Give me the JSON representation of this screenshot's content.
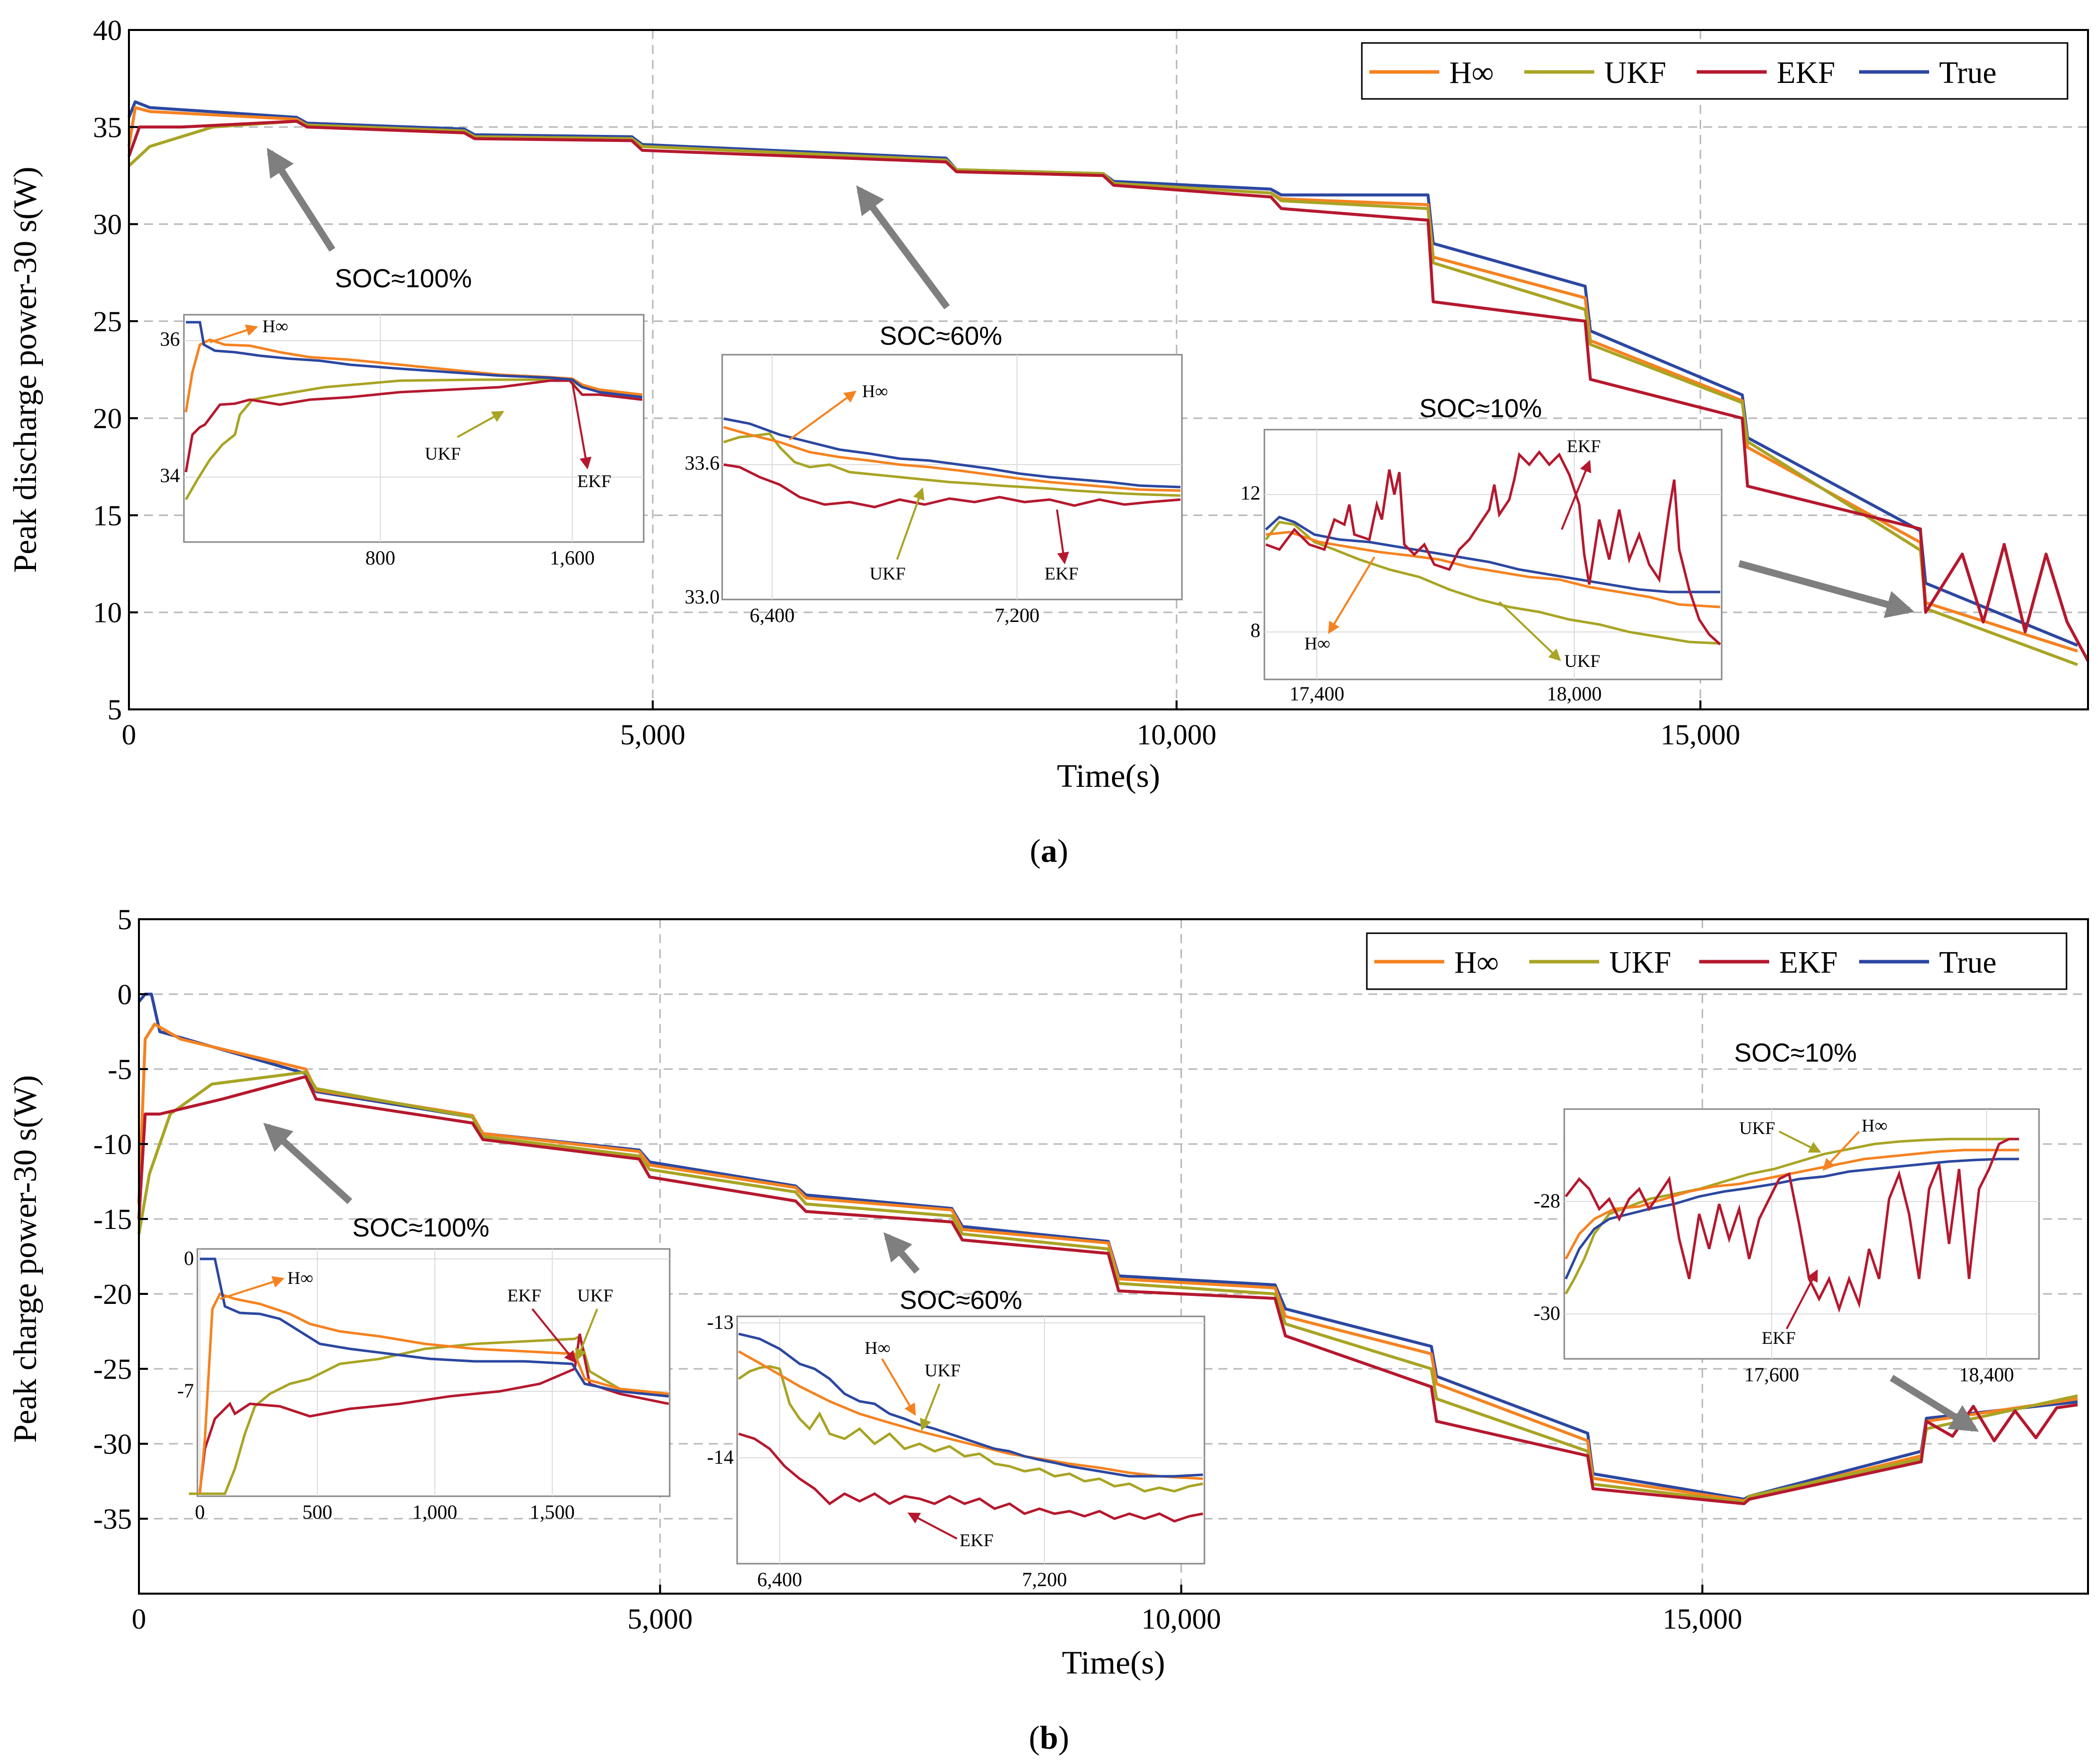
{
  "colors": {
    "Hinf": "#F58220",
    "UKF": "#A8A424",
    "EKF": "#B5182E",
    "True": "#2B47A0",
    "arrow": "#7f7f7f"
  },
  "chart_data": [
    {
      "id": "a",
      "type": "line",
      "caption_open": "(",
      "caption_letter": "a",
      "caption_close": ")",
      "xlabel": "Time(s)",
      "ylabel": "Peak discharge power-30 s(W)",
      "xlim": [
        0,
        18700
      ],
      "ylim": [
        5,
        40
      ],
      "xticks": [
        0,
        5000,
        10000,
        15000
      ],
      "xtick_labels": [
        "0",
        "5,000",
        "10,000",
        "15,000"
      ],
      "yticks": [
        5,
        10,
        15,
        20,
        25,
        30,
        35,
        40
      ],
      "ytick_labels": [
        "5",
        "10",
        "15",
        "20",
        "25",
        "30",
        "35",
        "40"
      ],
      "grid": true,
      "legend": [
        "H∞",
        "UKF",
        "EKF",
        "True"
      ],
      "legend_position": "top-right",
      "series": [
        {
          "name": "True",
          "color_key": "True",
          "x": [
            0,
            60,
            200,
            1600,
            1700,
            3200,
            3300,
            4800,
            4900,
            7800,
            7900,
            9300,
            9400,
            10900,
            11000,
            12400,
            12450,
            13900,
            13950,
            15400,
            15450,
            17100,
            17150,
            18600
          ],
          "y": [
            35.5,
            36.3,
            36.0,
            35.5,
            35.2,
            34.9,
            34.6,
            34.5,
            34.1,
            33.4,
            32.8,
            32.6,
            32.2,
            31.8,
            31.5,
            31.5,
            29.0,
            26.8,
            24.5,
            21.2,
            19.0,
            14.2,
            11.5,
            8.3
          ]
        },
        {
          "name": "H∞",
          "color_key": "Hinf",
          "x": [
            0,
            60,
            200,
            1600,
            1700,
            3200,
            3300,
            4800,
            4900,
            7800,
            7900,
            9300,
            9400,
            10900,
            11000,
            12400,
            12450,
            13900,
            13950,
            15400,
            15450,
            17100,
            17150,
            18600
          ],
          "y": [
            34.0,
            36.0,
            35.8,
            35.4,
            35.1,
            34.8,
            34.5,
            34.4,
            34.0,
            33.3,
            32.7,
            32.5,
            32.1,
            31.6,
            31.3,
            31.0,
            28.3,
            26.2,
            24.0,
            20.9,
            18.5,
            13.6,
            10.5,
            8.0
          ]
        },
        {
          "name": "UKF",
          "color_key": "UKF",
          "x": [
            0,
            200,
            800,
            1600,
            1700,
            3200,
            3300,
            4800,
            4900,
            7800,
            7900,
            9300,
            9400,
            10900,
            11000,
            12400,
            12450,
            13900,
            13950,
            15400,
            15450,
            17100,
            17150,
            18600
          ],
          "y": [
            33.0,
            34.0,
            35.0,
            35.3,
            35.1,
            34.8,
            34.5,
            34.4,
            34.0,
            33.3,
            32.8,
            32.6,
            32.1,
            31.6,
            31.2,
            30.8,
            28.0,
            25.6,
            23.8,
            20.8,
            18.8,
            13.2,
            10.2,
            7.3
          ]
        },
        {
          "name": "EKF",
          "color_key": "EKF",
          "x": [
            0,
            100,
            500,
            1600,
            1700,
            3200,
            3300,
            4800,
            4900,
            7800,
            7900,
            9300,
            9400,
            10900,
            11000,
            12400,
            12450,
            13900,
            13950,
            15400,
            15450,
            17100,
            17150,
            17500,
            17700,
            17900,
            18100,
            18300,
            18500,
            18700
          ],
          "y": [
            33.5,
            35.0,
            35.0,
            35.3,
            35.0,
            34.7,
            34.4,
            34.3,
            33.8,
            33.2,
            32.7,
            32.5,
            32.0,
            31.4,
            30.8,
            30.2,
            26.0,
            25.0,
            22.0,
            20.0,
            16.5,
            14.3,
            10.0,
            13.0,
            9.5,
            13.5,
            9.0,
            13.0,
            9.5,
            7.5
          ]
        }
      ],
      "annotations": [
        {
          "text": "SOC≈100%"
        },
        {
          "text": "SOC≈60%"
        },
        {
          "text": "SOC≈10%"
        }
      ],
      "insets": [
        {
          "id": "a1",
          "xticks": [
            800,
            1600
          ],
          "xtick_labels": [
            "800",
            "1,600"
          ],
          "yticks": [
            34,
            36
          ],
          "ytick_labels": [
            "34",
            "36"
          ],
          "labels": [
            "H∞",
            "UKF",
            "EKF"
          ]
        },
        {
          "id": "a2",
          "xticks": [
            6400,
            7200
          ],
          "xtick_labels": [
            "6,400",
            "7,200"
          ],
          "yticks": [
            33.0,
            33.6
          ],
          "ytick_labels": [
            "33.0",
            "33.6"
          ],
          "labels": [
            "H∞",
            "UKF",
            "EKF"
          ]
        },
        {
          "id": "a3",
          "xticks": [
            17400,
            18000
          ],
          "xtick_labels": [
            "17,400",
            "18,000"
          ],
          "yticks": [
            8,
            12
          ],
          "ytick_labels": [
            "8",
            "12"
          ],
          "labels": [
            "EKF",
            "H∞",
            "UKF"
          ]
        }
      ]
    },
    {
      "id": "b",
      "type": "line",
      "caption_open": "(",
      "caption_letter": "b",
      "caption_close": ")",
      "xlabel": "Time(s)",
      "ylabel": "Peak charge power-30 s(W)",
      "xlim": [
        0,
        18700
      ],
      "ylim": [
        -40,
        5
      ],
      "xticks": [
        0,
        5000,
        10000,
        15000
      ],
      "xtick_labels": [
        "0",
        "5,000",
        "10,000",
        "15,000"
      ],
      "yticks": [
        5,
        0,
        -5,
        -10,
        -15,
        -20,
        -25,
        -30,
        -35
      ],
      "ytick_labels": [
        "5",
        "0",
        "-5",
        "-10",
        "-15",
        "-20",
        "-25",
        "-30",
        "-35"
      ],
      "grid": true,
      "legend": [
        "H∞",
        "UKF",
        "EKF",
        "True"
      ],
      "legend_position": "top-right",
      "series": [
        {
          "name": "True",
          "color_key": "True",
          "x": [
            0,
            60,
            120,
            200,
            1600,
            1700,
            3200,
            3300,
            4800,
            4900,
            6300,
            6400,
            7800,
            7900,
            9300,
            9400,
            10900,
            11000,
            12400,
            12450,
            13900,
            13950,
            15400,
            15450,
            17100,
            17150,
            18600
          ],
          "y": [
            -0.5,
            0,
            0,
            -2.5,
            -5.3,
            -6.5,
            -8.2,
            -9.3,
            -10.4,
            -11.2,
            -12.8,
            -13.4,
            -14.3,
            -15.5,
            -16.5,
            -18.8,
            -19.4,
            -21.0,
            -23.5,
            -25.5,
            -29.3,
            -32.0,
            -33.7,
            -33.5,
            -30.5,
            -28.3,
            -27.2
          ]
        },
        {
          "name": "H∞",
          "color_key": "Hinf",
          "x": [
            0,
            60,
            150,
            400,
            1600,
            1700,
            3200,
            3300,
            4800,
            4900,
            6300,
            6400,
            7800,
            7900,
            9300,
            9400,
            10900,
            11000,
            12400,
            12450,
            13900,
            13950,
            15400,
            15450,
            17100,
            17150,
            18600
          ],
          "y": [
            -14,
            -3,
            -2,
            -3.0,
            -5.0,
            -6.4,
            -8.1,
            -9.3,
            -10.5,
            -11.4,
            -12.9,
            -13.6,
            -14.4,
            -15.7,
            -16.6,
            -19.0,
            -19.6,
            -21.5,
            -24.0,
            -26.0,
            -29.8,
            -32.3,
            -33.8,
            -33.6,
            -30.8,
            -28.5,
            -27.0
          ]
        },
        {
          "name": "UKF",
          "color_key": "UKF",
          "x": [
            0,
            100,
            300,
            700,
            1600,
            1700,
            3200,
            3300,
            4800,
            4900,
            6300,
            6400,
            7800,
            7900,
            9300,
            9400,
            10900,
            11000,
            12400,
            12450,
            13900,
            13950,
            15400,
            15450,
            17100,
            17150,
            18600
          ],
          "y": [
            -16,
            -12,
            -8,
            -6,
            -5.2,
            -6.3,
            -8.2,
            -9.5,
            -10.8,
            -11.7,
            -13.2,
            -14.0,
            -14.8,
            -16.0,
            -17.0,
            -19.3,
            -20.0,
            -22.0,
            -25.0,
            -27.0,
            -30.5,
            -32.7,
            -33.9,
            -33.5,
            -31.0,
            -29.0,
            -26.8
          ]
        },
        {
          "name": "EKF",
          "color_key": "EKF",
          "x": [
            0,
            60,
            200,
            800,
            1600,
            1700,
            3200,
            3300,
            4800,
            4900,
            6300,
            6400,
            7800,
            7900,
            9300,
            9400,
            10900,
            11000,
            12400,
            12450,
            13900,
            13950,
            15400,
            15450,
            17100,
            17150,
            17400,
            17600,
            17800,
            18000,
            18200,
            18400,
            18600
          ],
          "y": [
            -15,
            -8,
            -8,
            -7,
            -5.5,
            -7.0,
            -8.6,
            -9.7,
            -11.0,
            -12.2,
            -13.8,
            -14.5,
            -15.2,
            -16.4,
            -17.3,
            -19.8,
            -20.3,
            -22.8,
            -26.2,
            -28.5,
            -30.8,
            -33.0,
            -34.0,
            -33.7,
            -31.2,
            -28.5,
            -29.5,
            -27.5,
            -29.8,
            -27.8,
            -29.6,
            -27.6,
            -27.4
          ]
        }
      ],
      "annotations": [
        {
          "text": "SOC≈100%"
        },
        {
          "text": "SOC≈60%"
        },
        {
          "text": "SOC≈10%"
        }
      ],
      "insets": [
        {
          "id": "b1",
          "xticks": [
            0,
            500,
            1000,
            1500
          ],
          "xtick_labels": [
            "0",
            "500",
            "1,000",
            "1,500"
          ],
          "yticks": [
            0,
            -7
          ],
          "ytick_labels": [
            "0",
            "-7"
          ],
          "labels": [
            "H∞",
            "EKF",
            "UKF"
          ]
        },
        {
          "id": "b2",
          "xticks": [
            6400,
            7200
          ],
          "xtick_labels": [
            "6,400",
            "7,200"
          ],
          "yticks": [
            -13,
            -14
          ],
          "ytick_labels": [
            "-13",
            "-14"
          ],
          "labels": [
            "H∞",
            "UKF",
            "EKF"
          ]
        },
        {
          "id": "b3",
          "xticks": [
            17600,
            18400
          ],
          "xtick_labels": [
            "17,600",
            "18,400"
          ],
          "yticks": [
            -28,
            -30
          ],
          "ytick_labels": [
            "-28",
            "-30"
          ],
          "labels": [
            "UKF",
            "H∞",
            "EKF"
          ]
        }
      ]
    }
  ]
}
